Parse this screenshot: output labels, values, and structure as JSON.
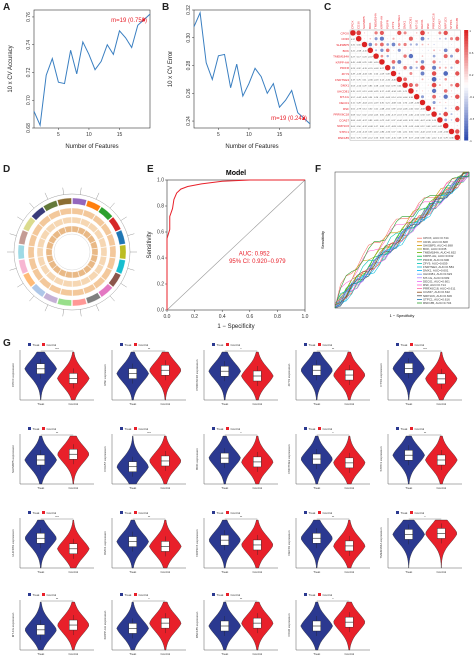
{
  "panels": {
    "A": {
      "letter": "A"
    },
    "B": {
      "letter": "B"
    },
    "C": {
      "letter": "C"
    },
    "D": {
      "letter": "D"
    },
    "E": {
      "letter": "E"
    },
    "F": {
      "letter": "F"
    },
    "G": {
      "letter": "G"
    }
  },
  "colors": {
    "treat": "#2b3990",
    "control": "#e8202a",
    "line": "#3a7fc1",
    "roc": "#e8202a"
  },
  "chart_data": [
    {
      "id": "A",
      "type": "line",
      "xlabel": "Number of Features",
      "ylabel": "10 x CV Accuracy",
      "annotation": "m=19 (0.758)",
      "xticks": [
        5,
        10,
        15
      ],
      "yticks": [
        0.68,
        0.7,
        0.72,
        0.74,
        0.76
      ],
      "xlim": [
        1,
        20
      ],
      "ylim": [
        0.68,
        0.765
      ],
      "x": [
        1,
        2,
        3,
        4,
        5,
        6,
        7,
        8,
        9,
        10,
        11,
        12,
        13,
        14,
        15,
        16,
        17,
        18,
        19,
        20
      ],
      "y": [
        0.692,
        0.682,
        0.718,
        0.73,
        0.713,
        0.712,
        0.736,
        0.719,
        0.742,
        0.733,
        0.722,
        0.728,
        0.74,
        0.733,
        0.75,
        0.745,
        0.738,
        0.754,
        0.758,
        0.762
      ]
    },
    {
      "id": "B",
      "type": "line",
      "xlabel": "Number of Features",
      "ylabel": "10 x CV Error",
      "annotation": "m=19 (0.242)",
      "xticks": [
        5,
        10,
        15
      ],
      "yticks": [
        0.24,
        0.26,
        0.28,
        0.3,
        0.32
      ],
      "xlim": [
        1,
        20
      ],
      "ylim": [
        0.235,
        0.32
      ],
      "x": [
        1,
        2,
        3,
        4,
        5,
        6,
        7,
        8,
        9,
        10,
        11,
        12,
        13,
        14,
        15,
        16,
        17,
        18,
        19,
        20
      ],
      "y": [
        0.308,
        0.318,
        0.282,
        0.27,
        0.287,
        0.288,
        0.264,
        0.281,
        0.258,
        0.267,
        0.278,
        0.272,
        0.26,
        0.267,
        0.25,
        0.255,
        0.262,
        0.246,
        0.242,
        0.238
      ]
    },
    {
      "id": "E",
      "type": "line",
      "title": "Model",
      "xlabel": "1 − Specificity",
      "ylabel": "Sensitivity",
      "auc": "AUC: 0.952",
      "ci": "95% CI: 0.920−0.979",
      "xticks": [
        "0.0",
        "0.2",
        "0.4",
        "0.6",
        "0.8",
        "1.0"
      ],
      "yticks": [
        "0.0",
        "0.2",
        "0.4",
        "0.6",
        "0.8",
        "1.0"
      ],
      "fpr": [
        0,
        0,
        0.02,
        0.02,
        0.04,
        0.05,
        0.07,
        0.1,
        0.15,
        0.25,
        0.4,
        0.6,
        1.0
      ],
      "tpr": [
        0,
        0.55,
        0.62,
        0.72,
        0.78,
        0.85,
        0.9,
        0.93,
        0.95,
        0.97,
        0.99,
        1.0,
        1.0
      ]
    },
    {
      "id": "F",
      "type": "line",
      "xlabel": "1 − Specificity",
      "ylabel": "Sensitivity",
      "legend_position": "bottom-right",
      "series": [
        {
          "name": "CPOX, AUC=0.744",
          "color": "#f8766d",
          "auc": 0.744
        },
        {
          "name": "CD36, AUC=0.608",
          "color": "#e58700",
          "auc": 0.608
        },
        {
          "name": "SHISBP5, AUC=0.698",
          "color": "#c99800",
          "auc": 0.698
        },
        {
          "name": "BOK, AUC=0.635",
          "color": "#a3a500",
          "auc": 0.635
        },
        {
          "name": "TMEM184A, AUC=0.652",
          "color": "#6bb100",
          "auc": 0.652
        },
        {
          "name": "KRPP-AH, AUC=0.632",
          "color": "#00ba38",
          "auc": 0.632
        },
        {
          "name": "PDIFR, AUC=0.606",
          "color": "#00bf7d",
          "auc": 0.606
        },
        {
          "name": "ZFY9, AUC=0.659",
          "color": "#00c0af",
          "auc": 0.659
        },
        {
          "name": "FNDTNE3, AUC=0.584",
          "color": "#00bcd8",
          "auc": 0.584
        },
        {
          "name": "DMX1, AUC=0.601",
          "color": "#00b0f6",
          "auc": 0.601
        },
        {
          "name": "UHCD81, AUC=0.623",
          "color": "#619cff",
          "auc": 0.623
        },
        {
          "name": "MT-1G, AUC=0.609",
          "color": "#b983ff",
          "auc": 0.609
        },
        {
          "name": "DEC01, AUC=0.601",
          "color": "#e76bf3",
          "auc": 0.601
        },
        {
          "name": "RSF, AUC=0.714",
          "color": "#fd61d1",
          "auc": 0.714
        },
        {
          "name": "PRRX6C18, AUC=0.611",
          "color": "#ff67a4",
          "auc": 0.611
        },
        {
          "name": "COA57, AUC=0.632",
          "color": "#8b4513",
          "auc": 0.632
        },
        {
          "name": "NRP1C6, AUC=0.606",
          "color": "#555555",
          "auc": 0.606
        },
        {
          "name": "STPC1, AUC=0.616",
          "color": "#1f77b4",
          "auc": 0.616
        },
        {
          "name": "RNF185, AUC=0.734",
          "color": "#2ca02c",
          "auc": 0.734
        }
      ]
    },
    {
      "id": "G",
      "type": "violin",
      "groups": [
        "Treat",
        "Control"
      ],
      "legend": [
        "Treat",
        "Control"
      ],
      "plots": [
        {
          "ylabel": "CPOX expression",
          "sig": "***",
          "treat": 0.65,
          "control": 0.45
        },
        {
          "ylabel": "RSF expression",
          "sig": "**",
          "treat": 0.55,
          "control": 0.62
        },
        {
          "ylabel": "PRRX6C18 expression",
          "sig": "*",
          "treat": 0.6,
          "control": 0.5
        },
        {
          "ylabel": "ZFY9 expression",
          "sig": "**",
          "treat": 0.62,
          "control": 0.52
        },
        {
          "ylabel": "CTSS expression",
          "sig": "***",
          "treat": 0.66,
          "control": 0.44
        },
        {
          "ylabel": "SHISBP5 expression",
          "sig": "**",
          "treat": 0.5,
          "control": 0.62
        },
        {
          "ylabel": "COA57 expression",
          "sig": "***",
          "treat": 0.36,
          "control": 0.48
        },
        {
          "ylabel": "BOK expression",
          "sig": "*",
          "treat": 0.54,
          "control": 0.46
        },
        {
          "ylabel": "FNDTNE3 expression",
          "sig": "*",
          "treat": 0.52,
          "control": 0.44
        },
        {
          "ylabel": "STPC1 expression",
          "sig": "**",
          "treat": 0.6,
          "control": 0.5
        },
        {
          "ylabel": "UHCD81 expression",
          "sig": "***",
          "treat": 0.62,
          "control": 0.4
        },
        {
          "ylabel": "DMX1 expression",
          "sig": "**",
          "treat": 0.55,
          "control": 0.45
        },
        {
          "ylabel": "NRP1C6 expression",
          "sig": "**",
          "treat": 0.58,
          "control": 0.48
        },
        {
          "ylabel": "DEC01 expression",
          "sig": "**",
          "treat": 0.62,
          "control": 0.46
        },
        {
          "ylabel": "TMEM184A expression",
          "sig": "*",
          "treat": 0.7,
          "control": 0.72
        },
        {
          "ylabel": "MT-1G expression",
          "sig": "**",
          "treat": 0.42,
          "control": 0.52
        },
        {
          "ylabel": "KRPP-AH expression",
          "sig": "*",
          "treat": 0.45,
          "control": 0.56
        },
        {
          "ylabel": "RNF185 expression",
          "sig": "**",
          "treat": 0.5,
          "control": 0.56
        },
        {
          "ylabel": "CD36 expression",
          "sig": "*",
          "treat": 0.5,
          "control": 0.58
        }
      ]
    }
  ],
  "corr": {
    "labels": [
      "CPOX",
      "CD36",
      "SHISBP5",
      "BOK",
      "TMEM184A",
      "KRPP-AH",
      "PDIFR",
      "ZFY9",
      "FNDTNE3",
      "DMX1",
      "UHCD81",
      "MT-1G",
      "DEC01",
      "RSF",
      "PRRX6C18",
      "COA57",
      "NRP1C6",
      "STPC1",
      "RNF185"
    ],
    "legend_ticks": [
      "1",
      "0.6",
      "0.2",
      "-0.2",
      "-0.6",
      "-1"
    ]
  }
}
